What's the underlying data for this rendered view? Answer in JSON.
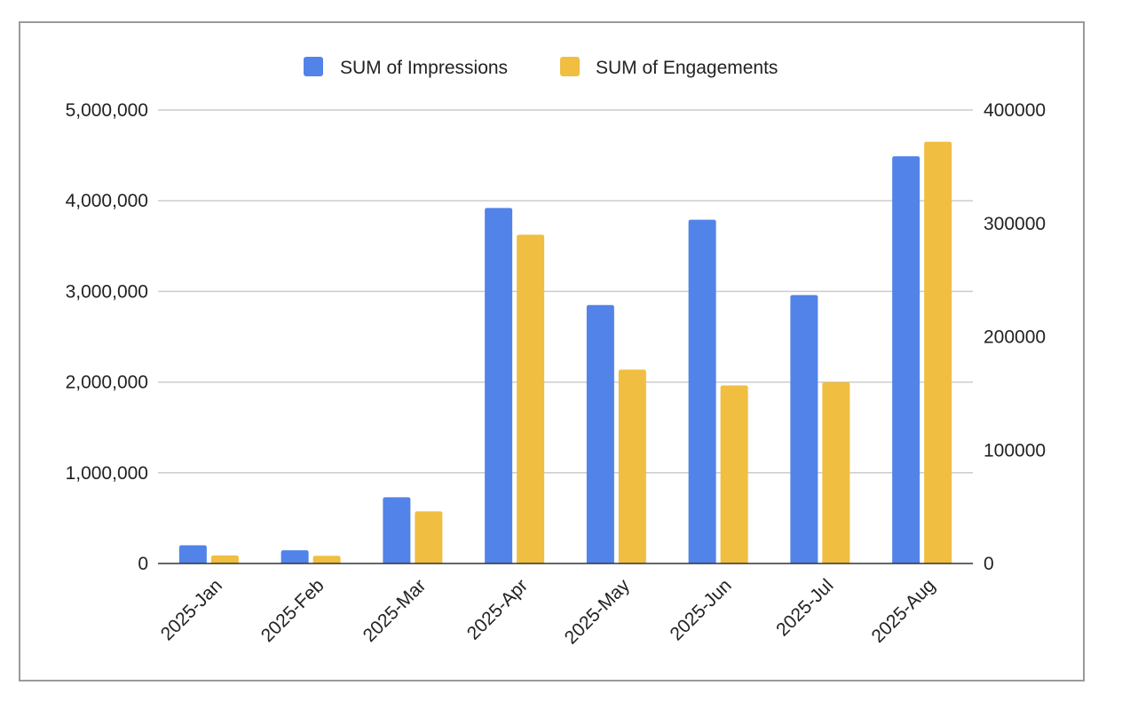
{
  "chart_data": {
    "type": "bar",
    "title": "",
    "xlabel": "",
    "ylabel": "",
    "categories": [
      "2025-Jan",
      "2025-Feb",
      "2025-Mar",
      "2025-Apr",
      "2025-May",
      "2025-Jun",
      "2025-Jul",
      "2025-Aug"
    ],
    "series": [
      {
        "name": "SUM of Impressions",
        "axis": "left",
        "color": "#5283E8",
        "values": [
          200000,
          145000,
          730000,
          3920000,
          2850000,
          3790000,
          2960000,
          4490000
        ]
      },
      {
        "name": "SUM of Engagements",
        "axis": "right",
        "color": "#F0BE41",
        "values": [
          7000,
          6800,
          46000,
          290000,
          171000,
          157000,
          160000,
          372000
        ]
      }
    ],
    "y_left": {
      "lim": [
        0,
        5000000
      ],
      "ticks": [
        0,
        1000000,
        2000000,
        3000000,
        4000000,
        5000000
      ],
      "tick_labels": [
        "0",
        "1,000,000",
        "2,000,000",
        "3,000,000",
        "4,000,000",
        "5,000,000"
      ]
    },
    "y_right": {
      "lim": [
        0,
        400000
      ],
      "ticks": [
        0,
        100000,
        200000,
        300000,
        400000
      ],
      "tick_labels": [
        "0",
        "100000",
        "200000",
        "300000",
        "400000"
      ]
    },
    "legend_position": "top-center",
    "grid": true
  }
}
